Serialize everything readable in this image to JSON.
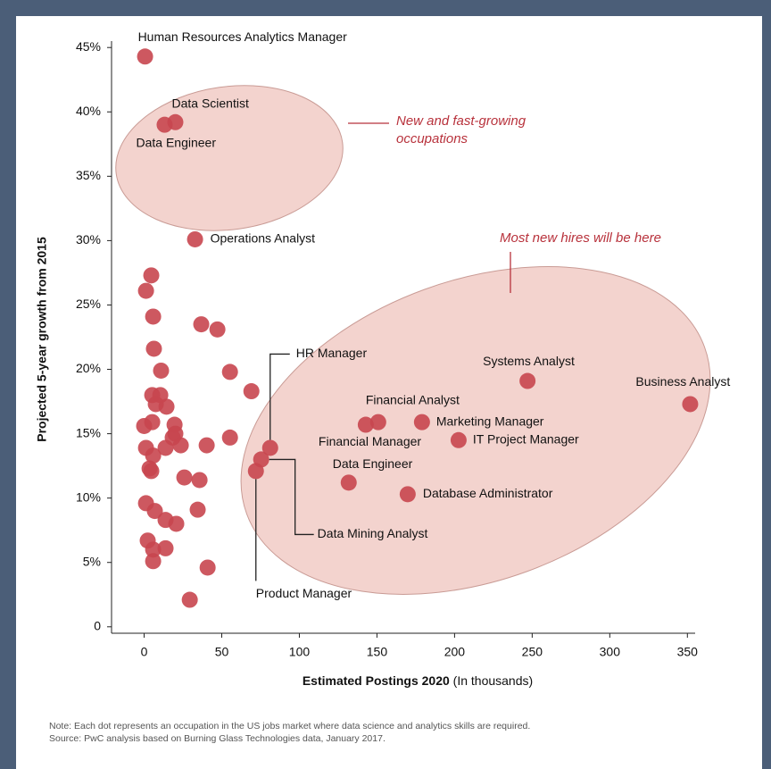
{
  "chart_data": {
    "type": "scatter",
    "ylabel": "Projected 5-year growth from 2015",
    "xlabel": "Estimated Postings 2020",
    "xlabel_note": "(In thousands)",
    "annotations": [
      [
        "New and fast-growing",
        "occupations"
      ],
      [
        "Most new hires will be here"
      ]
    ],
    "notes": [
      "Note: Each dot represents an occupation in the US jobs market where data science and analytics skills are required.",
      "Source: PwC analysis based on Burning Glass Technologies data, January 2017."
    ],
    "color": "#c8464f",
    "labels": [
      "Human Resources Analytics Manager",
      "Data Scientist",
      "Data Engineer",
      "Operations Analyst",
      "HR Manager",
      "Data Mining Analyst",
      "Product Manager",
      "Data Engineer",
      "Financial Manager",
      "Financial Analyst",
      "Marketing Manager",
      "IT Project Manager",
      "Database Administrator",
      "Systems Analyst",
      "Business Analyst",
      null,
      null,
      null,
      null,
      null,
      null,
      null,
      null,
      null,
      null,
      null,
      null,
      null,
      null,
      null,
      null,
      null,
      null,
      null,
      null,
      null,
      null,
      null,
      null,
      null,
      null,
      null,
      null,
      null,
      null,
      null,
      null,
      null,
      null,
      null,
      null,
      null,
      null,
      null
    ],
    "x": [
      0.6,
      20.1,
      13.2,
      32.8,
      81.2,
      75.4,
      72.0,
      131.8,
      142.8,
      150.8,
      179.0,
      202.6,
      169.8,
      247.0,
      351.8,
      4.6,
      1.2,
      5.8,
      36.8,
      47.2,
      6.3,
      10.9,
      55.3,
      69.1,
      5.2,
      10.4,
      7.5,
      14.4,
      0,
      19.6,
      5.2,
      20.1,
      18.4,
      55.3,
      1.2,
      23.6,
      40.3,
      13.8,
      5.8,
      3.5,
      4.6,
      25.9,
      35.7,
      34.5,
      1.2,
      6.9,
      13.8,
      20.7,
      2.3,
      5.8,
      13.8,
      5.8,
      40.9,
      29.4
    ],
    "values": [
      44.3,
      39.2,
      39.0,
      30.1,
      13.9,
      13.0,
      12.1,
      11.2,
      15.7,
      15.9,
      15.9,
      14.5,
      10.3,
      19.1,
      17.3,
      27.3,
      26.1,
      24.1,
      23.5,
      23.1,
      21.6,
      19.9,
      19.8,
      18.3,
      18.0,
      18.0,
      17.3,
      17.1,
      15.6,
      15.7,
      15.9,
      15.0,
      14.7,
      14.7,
      13.9,
      14.1,
      14.1,
      13.9,
      13.3,
      12.3,
      12.1,
      11.6,
      11.4,
      9.1,
      9.6,
      9.0,
      8.3,
      8.0,
      6.7,
      6.0,
      6.1,
      5.1,
      4.6,
      2.1
    ],
    "xlim": [
      -21,
      355
    ],
    "xticks": [
      0,
      50,
      100,
      150,
      200,
      250,
      300,
      350
    ],
    "ylim": [
      -0.5,
      45.5
    ],
    "yticks": [
      0,
      {
        "value": 5,
        "label": "5%"
      },
      {
        "value": 10,
        "label": "10%"
      },
      {
        "value": 15,
        "label": "15%"
      },
      {
        "value": 20,
        "label": "20%"
      },
      {
        "value": 25,
        "label": "25%"
      },
      {
        "value": 30,
        "label": "30%"
      },
      {
        "value": 35,
        "label": "35%"
      },
      {
        "value": 40,
        "label": "40%"
      },
      {
        "value": 45,
        "label": "45%"
      }
    ],
    "grid": false
  }
}
